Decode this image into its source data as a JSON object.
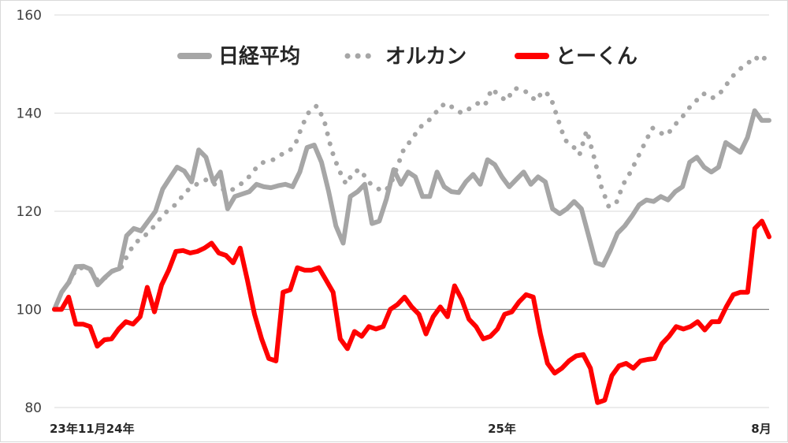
{
  "chart_data": {
    "type": "line",
    "title": "",
    "xlabel": "",
    "ylabel": "",
    "ylim": [
      80,
      160
    ],
    "yticks": [
      80,
      100,
      120,
      140,
      160
    ],
    "baseline": 100,
    "x_tick_labels": [
      "23年11月24年",
      "25年",
      "8月"
    ],
    "legend_position": "top",
    "grid": true,
    "series": [
      {
        "name": "日経平均",
        "color": "#a6a6a6",
        "style": "solid",
        "values": [
          100,
          103.5,
          105.5,
          108.7,
          108.8,
          108.2,
          105,
          106.5,
          107.8,
          108.3,
          115,
          116.5,
          116,
          118,
          120,
          124.5,
          126.8,
          129,
          128.2,
          126,
          132.5,
          131,
          126,
          128,
          120.5,
          123,
          123.5,
          124,
          125.5,
          125,
          124.8,
          125.2,
          125.5,
          125,
          128,
          133,
          133.5,
          130,
          124,
          117,
          113.5,
          123,
          124,
          125.5,
          117.5,
          118,
          122.5,
          128.5,
          125.5,
          128,
          127,
          123,
          123,
          128,
          125,
          124,
          123.8,
          126,
          127.5,
          125.5,
          130.5,
          129.5,
          127,
          125,
          126.5,
          128,
          125.5,
          127,
          126,
          120.5,
          119.5,
          120.5,
          122,
          120.5,
          115,
          109.5,
          109,
          112,
          115.5,
          117,
          119,
          121.3,
          122.3,
          122,
          123,
          122.3,
          124,
          125,
          130,
          131,
          129,
          128,
          129,
          134,
          133,
          132,
          135,
          140.5,
          138.5,
          138.5
        ]
      },
      {
        "name": "オルカン",
        "color": "#a6a6a6",
        "style": "dotted",
        "values": [
          100,
          103.5,
          105.5,
          108.3,
          108.5,
          107.8,
          105.7,
          106.5,
          107.8,
          108,
          111,
          113.5,
          114.5,
          115.8,
          117.5,
          119.5,
          120.5,
          122,
          124,
          125,
          126,
          126.5,
          125.5,
          124.5,
          124,
          125,
          126,
          127.5,
          129.5,
          130.2,
          130.5,
          131.5,
          132,
          133.5,
          137.5,
          140.5,
          141.5,
          138.5,
          132.5,
          128.5,
          125.5,
          128,
          128.5,
          126,
          125,
          124,
          125,
          129,
          133,
          134.5,
          137,
          138,
          139.5,
          141.5,
          142,
          140.5,
          140,
          141,
          142,
          141.5,
          145,
          143.5,
          142.5,
          145,
          145,
          144,
          142.5,
          144.5,
          143.5,
          139,
          134.5,
          133.5,
          131.5,
          136.5,
          131,
          125,
          121,
          121.5,
          125.5,
          128,
          131,
          134,
          137,
          136,
          135.5,
          137.5,
          139,
          141,
          142.5,
          144,
          143,
          143.5,
          145.5,
          147.5,
          149,
          150,
          151.5,
          150.5,
          152.5
        ]
      },
      {
        "name": "とーくん",
        "color": "#ff0000",
        "style": "solid",
        "values": [
          100,
          100,
          102.5,
          97,
          97,
          96.5,
          92.5,
          93.8,
          94,
          96,
          97.5,
          97,
          98.5,
          104.5,
          99.5,
          105,
          108,
          111.8,
          112,
          111.5,
          111.8,
          112.5,
          113.5,
          111.5,
          111,
          109.5,
          112.5,
          106,
          99,
          94,
          90,
          89.5,
          103.5,
          104,
          108.5,
          108,
          108,
          108.5,
          106,
          103.5,
          94,
          92,
          95.5,
          94.5,
          96.5,
          96,
          96.5,
          100,
          101,
          102.5,
          100.5,
          99,
          95,
          98.5,
          100.5,
          98.5,
          104.8,
          102,
          98,
          96.5,
          94,
          94.5,
          96,
          99,
          99.5,
          101.5,
          103,
          102.5,
          95,
          89,
          87,
          88,
          89.5,
          90.5,
          90.8,
          88,
          81,
          81.5,
          86.5,
          88.5,
          89,
          88,
          89.5,
          89.8,
          90,
          93,
          94.5,
          96.5,
          96,
          96.5,
          97.5,
          95.8,
          97.5,
          97.5,
          100.5,
          103,
          103.5,
          103.5,
          116.5,
          118,
          114.8
        ]
      }
    ]
  }
}
